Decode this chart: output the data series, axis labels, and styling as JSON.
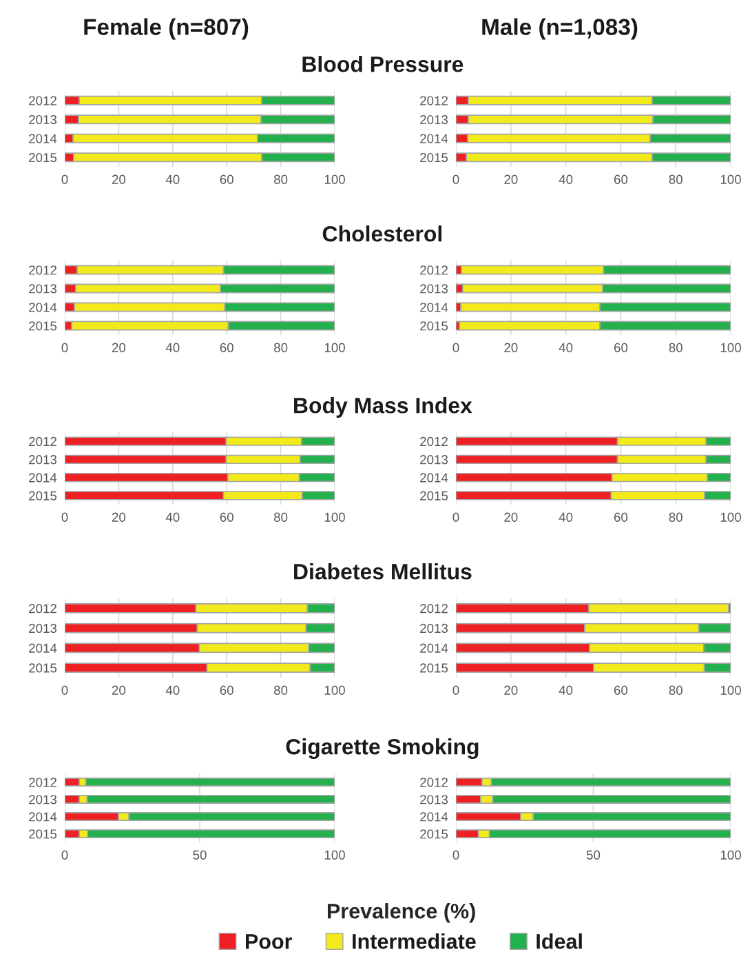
{
  "chart_data": [
    {
      "type": "bar",
      "orientation": "horizontal",
      "stacked": true,
      "title": "Blood Pressure",
      "annotations": [
        "Female (n=807)"
      ],
      "categories": [
        "2012",
        "2013",
        "2014",
        "2015"
      ],
      "xlim": [
        0,
        100
      ],
      "xticks": [
        0,
        20,
        40,
        60,
        80,
        100
      ],
      "grid": "x",
      "legend": "bottom",
      "legend_title": "Prevalence (%)",
      "series": [
        {
          "name": "Poor",
          "color": "#ee2024",
          "values": [
            5.4,
            5.1,
            3.1,
            3.3
          ]
        },
        {
          "name": "Intermediate",
          "color": "#f2ea1a",
          "values": [
            67.6,
            67.6,
            68.3,
            69.7
          ]
        },
        {
          "name": "Ideal",
          "color": "#22b14c",
          "values": [
            27.0,
            27.3,
            28.6,
            27.0
          ]
        }
      ]
    },
    {
      "type": "bar",
      "orientation": "horizontal",
      "stacked": true,
      "annotations": [
        "Male (n=1,083)"
      ],
      "categories": [
        "2012",
        "2013",
        "2014",
        "2015"
      ],
      "xlim": [
        0,
        100
      ],
      "xticks": [
        0,
        20,
        40,
        60,
        80,
        100
      ],
      "grid": "x",
      "series": [
        {
          "color": "#ee2024",
          "values": [
            4.5,
            4.5,
            4.3,
            3.8
          ]
        },
        {
          "color": "#f2ea1a",
          "values": [
            66.9,
            67.2,
            66.4,
            67.6
          ]
        },
        {
          "color": "#22b14c",
          "values": [
            28.6,
            28.3,
            29.3,
            28.6
          ]
        }
      ]
    },
    {
      "type": "bar",
      "orientation": "horizontal",
      "stacked": true,
      "title": "Cholesterol",
      "categories": [
        "2012",
        "2013",
        "2014",
        "2015"
      ],
      "xlim": [
        0,
        100
      ],
      "xticks": [
        0,
        20,
        40,
        60,
        80,
        100
      ],
      "grid": "x",
      "series": [
        {
          "color": "#ee2024",
          "values": [
            4.6,
            4.1,
            3.6,
            2.6
          ]
        },
        {
          "color": "#f2ea1a",
          "values": [
            54.2,
            53.6,
            55.7,
            58.0
          ]
        },
        {
          "color": "#22b14c",
          "values": [
            41.2,
            42.3,
            40.7,
            39.4
          ]
        }
      ]
    },
    {
      "type": "bar",
      "orientation": "horizontal",
      "stacked": true,
      "categories": [
        "2012",
        "2013",
        "2014",
        "2015"
      ],
      "xlim": [
        0,
        100
      ],
      "xticks": [
        0,
        20,
        40,
        60,
        80,
        100
      ],
      "grid": "x",
      "series": [
        {
          "color": "#ee2024",
          "values": [
            2.0,
            2.5,
            1.8,
            1.3
          ]
        },
        {
          "color": "#f2ea1a",
          "values": [
            51.7,
            50.9,
            50.6,
            51.1
          ]
        },
        {
          "color": "#22b14c",
          "values": [
            46.3,
            46.6,
            47.6,
            47.6
          ]
        }
      ]
    },
    {
      "type": "bar",
      "orientation": "horizontal",
      "stacked": true,
      "title": "Body Mass Index",
      "categories": [
        "2012",
        "2013",
        "2014",
        "2015"
      ],
      "xlim": [
        0,
        100
      ],
      "xticks": [
        0,
        20,
        40,
        60,
        80,
        100
      ],
      "grid": "x",
      "series": [
        {
          "color": "#ee2024",
          "values": [
            59.8,
            59.8,
            60.4,
            58.8
          ]
        },
        {
          "color": "#f2ea1a",
          "values": [
            27.9,
            27.4,
            26.5,
            29.2
          ]
        },
        {
          "color": "#22b14c",
          "values": [
            12.3,
            12.8,
            13.1,
            12.0
          ]
        }
      ]
    },
    {
      "type": "bar",
      "orientation": "horizontal",
      "stacked": true,
      "categories": [
        "2012",
        "2013",
        "2014",
        "2015"
      ],
      "xlim": [
        0,
        100
      ],
      "xticks": [
        0,
        20,
        40,
        60,
        80,
        100
      ],
      "grid": "x",
      "series": [
        {
          "color": "#ee2024",
          "values": [
            58.8,
            58.8,
            56.8,
            56.5
          ]
        },
        {
          "color": "#f2ea1a",
          "values": [
            32.2,
            32.2,
            34.7,
            34.0
          ]
        },
        {
          "color": "#22b14c",
          "values": [
            9.0,
            9.0,
            8.5,
            9.5
          ]
        }
      ]
    },
    {
      "type": "bar",
      "orientation": "horizontal",
      "stacked": true,
      "title": "Diabetes Mellitus",
      "categories": [
        "2012",
        "2013",
        "2014",
        "2015"
      ],
      "xlim": [
        0,
        100
      ],
      "xticks": [
        0,
        20,
        40,
        60,
        80,
        100
      ],
      "grid": "x",
      "series": [
        {
          "color": "#ee2024",
          "values": [
            48.6,
            49.1,
            49.9,
            52.7
          ]
        },
        {
          "color": "#f2ea1a",
          "values": [
            41.3,
            40.3,
            40.5,
            38.2
          ]
        },
        {
          "color": "#22b14c",
          "values": [
            10.1,
            10.6,
            9.6,
            9.1
          ]
        }
      ]
    },
    {
      "type": "bar",
      "orientation": "horizontal",
      "stacked": true,
      "categories": [
        "2012",
        "2013",
        "2014",
        "2015"
      ],
      "xlim": [
        0,
        100
      ],
      "xticks": [
        0,
        20,
        40,
        60,
        80,
        100
      ],
      "grid": "x",
      "series": [
        {
          "color": "#ee2024",
          "values": [
            48.4,
            46.9,
            48.6,
            50.1
          ]
        },
        {
          "color": "#f2ea1a",
          "values": [
            50.8,
            41.5,
            41.6,
            40.3
          ]
        },
        {
          "color": "#22b14c",
          "values": [
            0.8,
            11.6,
            9.8,
            9.6
          ]
        }
      ]
    },
    {
      "type": "bar",
      "orientation": "horizontal",
      "stacked": true,
      "title": "Cigarette Smoking",
      "categories": [
        "2012",
        "2013",
        "2014",
        "2015"
      ],
      "xlim": [
        0,
        100
      ],
      "xticks": [
        0,
        50,
        100
      ],
      "grid": "x",
      "series": [
        {
          "color": "#ee2024",
          "values": [
            5.4,
            5.4,
            19.9,
            5.4
          ]
        },
        {
          "color": "#f2ea1a",
          "values": [
            2.4,
            2.9,
            3.9,
            3.1
          ]
        },
        {
          "color": "#22b14c",
          "values": [
            92.2,
            91.7,
            76.2,
            91.5
          ]
        }
      ]
    },
    {
      "type": "bar",
      "orientation": "horizontal",
      "stacked": true,
      "categories": [
        "2012",
        "2013",
        "2014",
        "2015"
      ],
      "xlim": [
        0,
        100
      ],
      "xticks": [
        0,
        50,
        100
      ],
      "grid": "x",
      "series": [
        {
          "color": "#ee2024",
          "values": [
            9.5,
            9.0,
            23.6,
            8.2
          ]
        },
        {
          "color": "#f2ea1a",
          "values": [
            3.4,
            4.4,
            4.5,
            4.0
          ]
        },
        {
          "color": "#22b14c",
          "values": [
            87.1,
            86.6,
            71.9,
            87.8
          ]
        }
      ]
    }
  ]
}
